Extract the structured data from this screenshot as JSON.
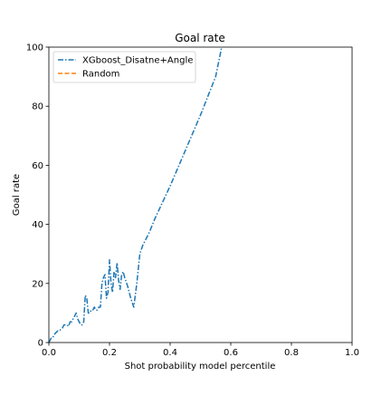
{
  "chart_data": {
    "type": "line",
    "title": "Goal rate",
    "xlabel": "Shot probability model percentile",
    "ylabel": "Goal rate",
    "xlim": [
      0.0,
      1.0
    ],
    "ylim": [
      0,
      100
    ],
    "xticks": [
      "0.0",
      "0.2",
      "0.4",
      "0.6",
      "0.8",
      "1.0"
    ],
    "yticks": [
      "0",
      "20",
      "40",
      "60",
      "80",
      "100"
    ],
    "grid": false,
    "legend": "top-left",
    "series": [
      {
        "name": "XGboost_Disatne+Angle",
        "color": "#1f77b4",
        "style": "dashdot",
        "x": [
          0.0,
          0.005,
          0.01,
          0.015,
          0.02,
          0.025,
          0.03,
          0.035,
          0.04,
          0.045,
          0.05,
          0.055,
          0.06,
          0.065,
          0.07,
          0.075,
          0.08,
          0.085,
          0.09,
          0.095,
          0.1,
          0.105,
          0.11,
          0.115,
          0.12,
          0.125,
          0.13,
          0.135,
          0.14,
          0.145,
          0.15,
          0.155,
          0.16,
          0.165,
          0.17,
          0.175,
          0.18,
          0.185,
          0.19,
          0.195,
          0.2,
          0.205,
          0.21,
          0.215,
          0.22,
          0.225,
          0.23,
          0.235,
          0.24,
          0.245,
          0.25,
          0.26,
          0.27,
          0.28,
          0.29,
          0.3,
          0.31,
          0.33,
          0.35,
          0.4,
          0.45,
          0.5,
          0.55,
          0.57
        ],
        "y": [
          0,
          1,
          2,
          2,
          3,
          3.5,
          4,
          4,
          4.5,
          5,
          6,
          6,
          6,
          5.5,
          7,
          7,
          8,
          9,
          10,
          8,
          7,
          6,
          6,
          7,
          16,
          15,
          10,
          10,
          11,
          11,
          12,
          11,
          11,
          12,
          12,
          20,
          22,
          23,
          15,
          17,
          28,
          20,
          17,
          24,
          22,
          27,
          21,
          18,
          23,
          24,
          22,
          19,
          15,
          12,
          20,
          30,
          33,
          37,
          42,
          53,
          65,
          77,
          90,
          100
        ]
      },
      {
        "name": "Random",
        "color": "#ff7f0e",
        "style": "dashed",
        "x": [],
        "y": []
      }
    ]
  }
}
